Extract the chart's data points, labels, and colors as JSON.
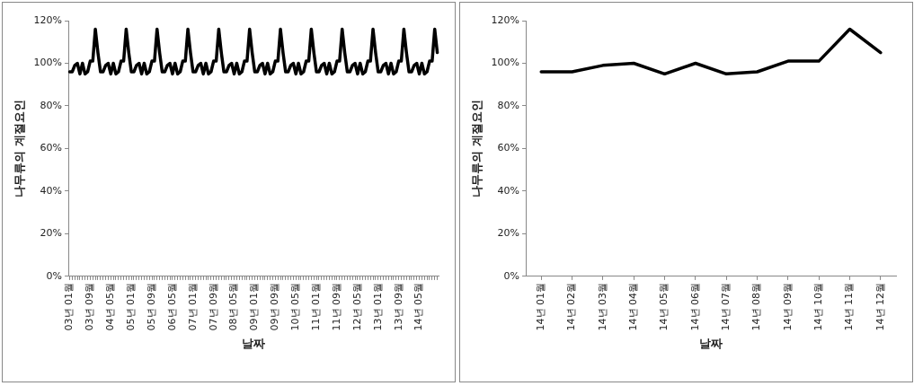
{
  "chart_data": [
    {
      "type": "line",
      "xlabel": "날짜",
      "ylabel": "나무류의 계절요인",
      "color": "#000000",
      "categories": [
        "03년 01월",
        null,
        null,
        null,
        null,
        null,
        null,
        null,
        "03년 09월",
        null,
        null,
        null,
        null,
        null,
        null,
        null,
        "04년 05월",
        null,
        null,
        null,
        null,
        null,
        null,
        null,
        "05년 01월",
        null,
        null,
        null,
        null,
        null,
        null,
        null,
        "05년 09월",
        null,
        null,
        null,
        null,
        null,
        null,
        null,
        "06년 05월",
        null,
        null,
        null,
        null,
        null,
        null,
        null,
        "07년 01월",
        null,
        null,
        null,
        null,
        null,
        null,
        null,
        "07년 09월",
        null,
        null,
        null,
        null,
        null,
        null,
        null,
        "08년 05월",
        null,
        null,
        null,
        null,
        null,
        null,
        null,
        "09년 01월",
        null,
        null,
        null,
        null,
        null,
        null,
        null,
        "09년 09월",
        null,
        null,
        null,
        null,
        null,
        null,
        null,
        "10년 05월",
        null,
        null,
        null,
        null,
        null,
        null,
        null,
        "11년 01월",
        null,
        null,
        null,
        null,
        null,
        null,
        null,
        "11년 09월",
        null,
        null,
        null,
        null,
        null,
        null,
        null,
        "12년 05월",
        null,
        null,
        null,
        null,
        null,
        null,
        null,
        "13년 01월",
        null,
        null,
        null,
        null,
        null,
        null,
        null,
        "13년 09월",
        null,
        null,
        null,
        null,
        null,
        null,
        null,
        "14년 05월",
        null,
        null,
        null,
        null,
        null,
        null,
        null
      ],
      "values": [
        96,
        96,
        99,
        100,
        95,
        100,
        95,
        96,
        101,
        101,
        116,
        105,
        96,
        96,
        99,
        100,
        95,
        100,
        95,
        96,
        101,
        101,
        116,
        105,
        96,
        96,
        99,
        100,
        95,
        100,
        95,
        96,
        101,
        101,
        116,
        105,
        96,
        96,
        99,
        100,
        95,
        100,
        95,
        96,
        101,
        101,
        116,
        105,
        96,
        96,
        99,
        100,
        95,
        100,
        95,
        96,
        101,
        101,
        116,
        105,
        96,
        96,
        99,
        100,
        95,
        100,
        95,
        96,
        101,
        101,
        116,
        105,
        96,
        96,
        99,
        100,
        95,
        100,
        95,
        96,
        101,
        101,
        116,
        105,
        96,
        96,
        99,
        100,
        95,
        100,
        95,
        96,
        101,
        101,
        116,
        105,
        96,
        96,
        99,
        100,
        95,
        100,
        95,
        96,
        101,
        101,
        116,
        105,
        96,
        96,
        99,
        100,
        95,
        100,
        95,
        96,
        101,
        101,
        116,
        105,
        96,
        96,
        99,
        100,
        95,
        100,
        95,
        96,
        101,
        101,
        116,
        105,
        96,
        96,
        99,
        100,
        95,
        100,
        95,
        96,
        101,
        101,
        116,
        105
      ],
      "ylim": [
        0,
        120
      ],
      "yticks": [
        {
          "value": 0,
          "label": "0%"
        },
        {
          "value": 20,
          "label": "20%"
        },
        {
          "value": 40,
          "label": "40%"
        },
        {
          "value": 60,
          "label": "60%"
        },
        {
          "value": 80,
          "label": "80%"
        },
        {
          "value": 100,
          "label": "100%"
        },
        {
          "value": 120,
          "label": "120%"
        }
      ]
    },
    {
      "type": "line",
      "xlabel": "날짜",
      "ylabel": "나무류의 계절요인",
      "color": "#000000",
      "categories": [
        "14년 01월",
        "14년 02월",
        "14년 03월",
        "14년 04월",
        "14년 05월",
        "14년 06월",
        "14년 07월",
        "14년 08월",
        "14년 09월",
        "14년 10월",
        "14년 11월",
        "14년 12월"
      ],
      "values": [
        96,
        96,
        99,
        100,
        95,
        100,
        95,
        96,
        101,
        101,
        116,
        105
      ],
      "ylim": [
        0,
        120
      ],
      "yticks": [
        {
          "value": 0,
          "label": "0%"
        },
        {
          "value": 20,
          "label": "20%"
        },
        {
          "value": 40,
          "label": "40%"
        },
        {
          "value": 60,
          "label": "60%"
        },
        {
          "value": 80,
          "label": "80%"
        },
        {
          "value": 100,
          "label": "100%"
        },
        {
          "value": 120,
          "label": "120%"
        }
      ]
    }
  ]
}
